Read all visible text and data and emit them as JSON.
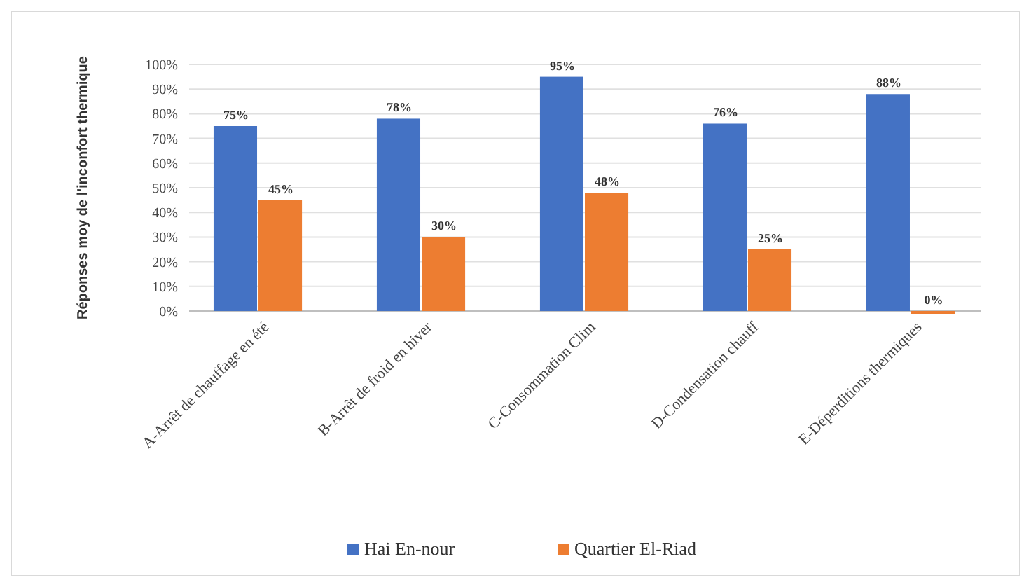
{
  "chart_data": {
    "type": "bar",
    "ylabel": "Réponses moy de l'inconfort thermique",
    "categories": [
      "A-Arrêt de chauffage en été",
      "B-Arrêt de froid en hiver",
      "C-Consommation Clim",
      "D-Condensation chauff",
      "E-Déperditions thermiques"
    ],
    "series": [
      {
        "name": "Hai En-nour",
        "color": "#4472c4",
        "values": [
          75,
          78,
          95,
          76,
          88
        ],
        "value_labels": [
          "75%",
          "78%",
          "95%",
          "76%",
          "88%"
        ]
      },
      {
        "name": "Quartier El-Riad",
        "color": "#ed7d31",
        "values": [
          45,
          30,
          48,
          25,
          0
        ],
        "value_labels": [
          "45%",
          "30%",
          "48%",
          "25%",
          "0%"
        ]
      }
    ],
    "ylim": [
      0,
      100
    ],
    "yticks": [
      {
        "value": 0,
        "label": "0%"
      },
      {
        "value": 10,
        "label": "10%"
      },
      {
        "value": 20,
        "label": "20%"
      },
      {
        "value": 30,
        "label": "30%"
      },
      {
        "value": 40,
        "label": "40%"
      },
      {
        "value": 50,
        "label": "50%"
      },
      {
        "value": 60,
        "label": "60%"
      },
      {
        "value": 70,
        "label": "70%"
      },
      {
        "value": 80,
        "label": "80%"
      },
      {
        "value": 90,
        "label": "90%"
      },
      {
        "value": 100,
        "label": "100%"
      }
    ],
    "grid": "y",
    "legend": "bottom"
  }
}
